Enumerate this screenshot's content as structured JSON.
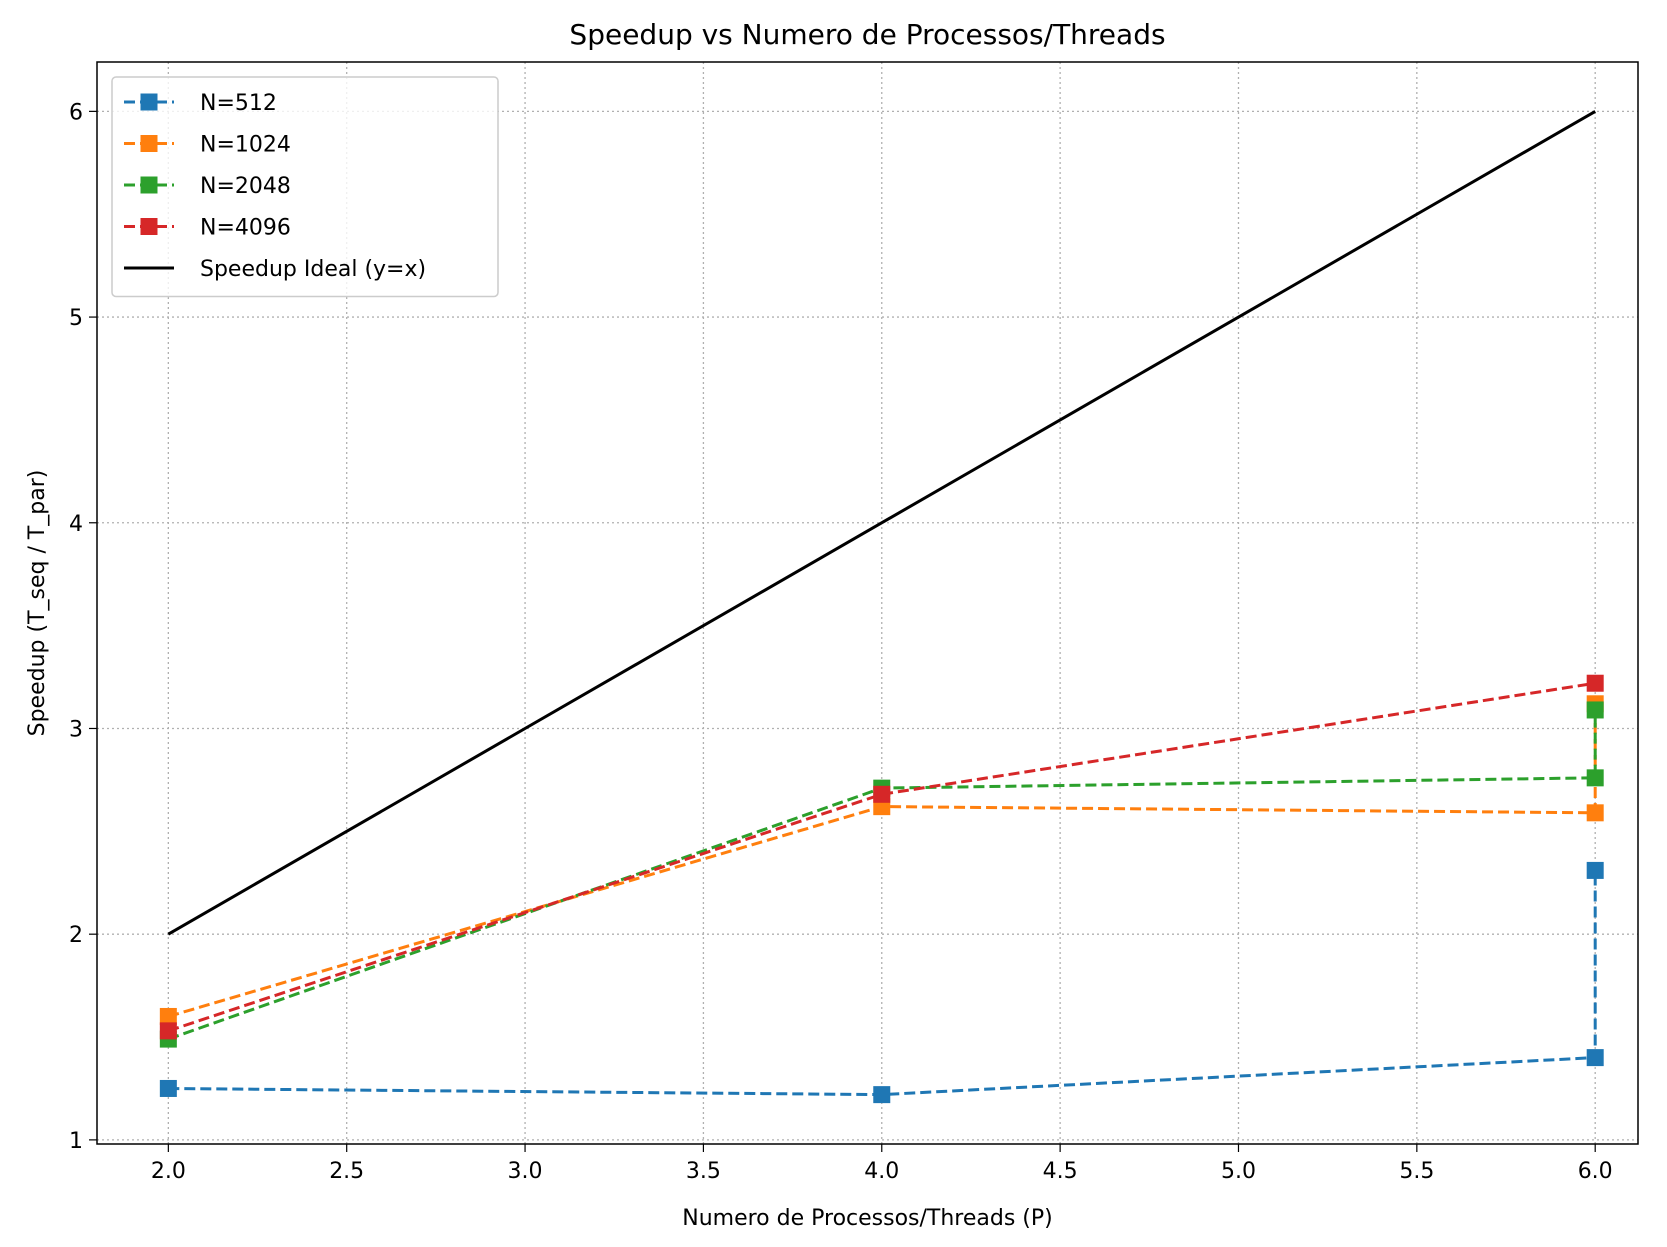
{
  "chart_data": {
    "type": "line",
    "title": "Speedup vs Numero de Processos/Threads",
    "xlabel": "Numero de Processos/Threads (P)",
    "ylabel": "Speedup (T_seq / T_par)",
    "xlim": [
      1.8,
      6.12
    ],
    "ylim": [
      0.98,
      6.24
    ],
    "xticks": [
      2.0,
      2.5,
      3.0,
      3.5,
      4.0,
      4.5,
      5.0,
      5.5,
      6.0
    ],
    "xtick_labels": [
      "2.0",
      "2.5",
      "3.0",
      "3.5",
      "4.0",
      "4.5",
      "5.0",
      "5.5",
      "6.0"
    ],
    "yticks": [
      1,
      2,
      3,
      4,
      5,
      6
    ],
    "ytick_labels": [
      "1",
      "2",
      "3",
      "4",
      "5",
      "6"
    ],
    "grid": true,
    "legend_position": "top-left",
    "series": [
      {
        "name": "N=512",
        "color": "#1f77b4",
        "style": "dashed",
        "marker": "square",
        "x": [
          2,
          4,
          6,
          6
        ],
        "y": [
          1.25,
          1.22,
          1.4,
          2.31
        ]
      },
      {
        "name": "N=1024",
        "color": "#ff7f0e",
        "style": "dashed",
        "marker": "square",
        "x": [
          2,
          4,
          6,
          6
        ],
        "y": [
          1.6,
          2.62,
          2.59,
          3.12
        ]
      },
      {
        "name": "N=2048",
        "color": "#2ca02c",
        "style": "dashed",
        "marker": "square",
        "x": [
          2,
          4,
          6,
          6
        ],
        "y": [
          1.49,
          2.71,
          2.76,
          3.09
        ]
      },
      {
        "name": "N=4096",
        "color": "#d62728",
        "style": "dashed",
        "marker": "square",
        "x": [
          2,
          4,
          6
        ],
        "y": [
          1.53,
          2.68,
          3.22
        ]
      },
      {
        "name": "Speedup Ideal (y=x)",
        "color": "#000000",
        "style": "solid",
        "marker": "none",
        "x": [
          2,
          6
        ],
        "y": [
          2,
          6
        ]
      }
    ]
  }
}
